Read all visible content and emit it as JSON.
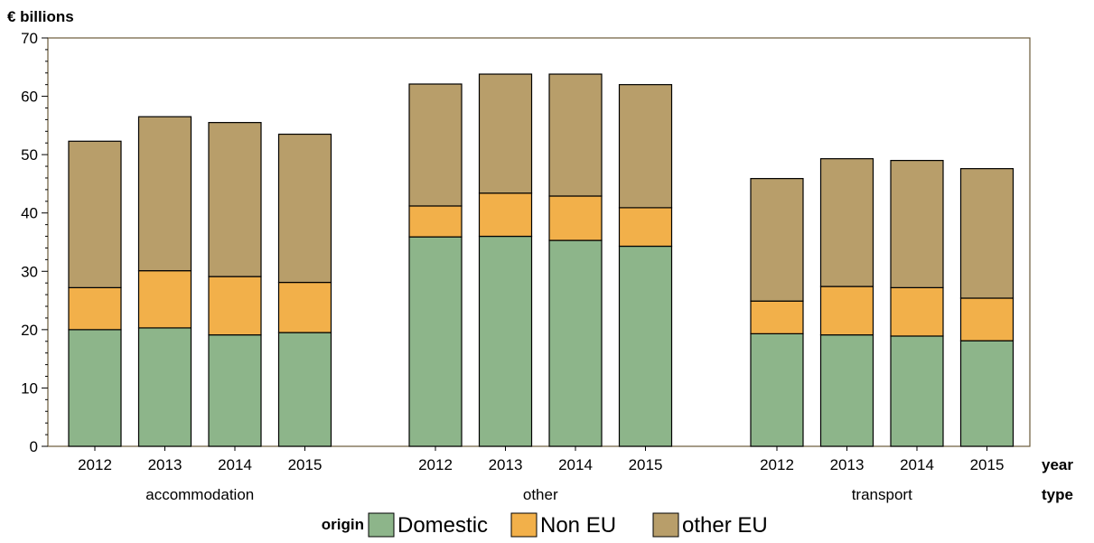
{
  "colors": {
    "Domestic": "#8db58a",
    "Non EU": "#f2b04a",
    "other EU": "#b89e6a",
    "frame": "#6b5a3a",
    "bar_stroke": "#000000"
  },
  "legend": {
    "title": "origin",
    "items": [
      "Domestic",
      "Non EU",
      "other EU"
    ]
  },
  "chart_data": {
    "type": "bar",
    "stacked": true,
    "title": "",
    "ylabel": "€ billions",
    "xlabel_inner": "year",
    "xlabel_outer": "type",
    "ylim": [
      0,
      70
    ],
    "yticks": [
      0,
      10,
      20,
      30,
      40,
      50,
      60,
      70
    ],
    "grid": false,
    "legend_position": "bottom",
    "groups": [
      "accommodation",
      "other",
      "transport"
    ],
    "years": [
      "2012",
      "2013",
      "2014",
      "2015"
    ],
    "series": [
      {
        "name": "Domestic",
        "values": [
          [
            20.0,
            20.3,
            19.1,
            19.5
          ],
          [
            35.9,
            36.0,
            35.3,
            34.3
          ],
          [
            19.3,
            19.1,
            18.9,
            18.1
          ]
        ]
      },
      {
        "name": "Non EU",
        "values": [
          [
            7.2,
            9.8,
            10.0,
            8.6
          ],
          [
            5.3,
            7.4,
            7.6,
            6.6
          ],
          [
            5.6,
            8.3,
            8.3,
            7.3
          ]
        ]
      },
      {
        "name": "other EU",
        "values": [
          [
            25.1,
            26.4,
            26.4,
            25.4
          ],
          [
            20.9,
            20.4,
            20.9,
            21.1
          ],
          [
            21.0,
            21.9,
            21.8,
            22.2
          ]
        ]
      }
    ]
  }
}
